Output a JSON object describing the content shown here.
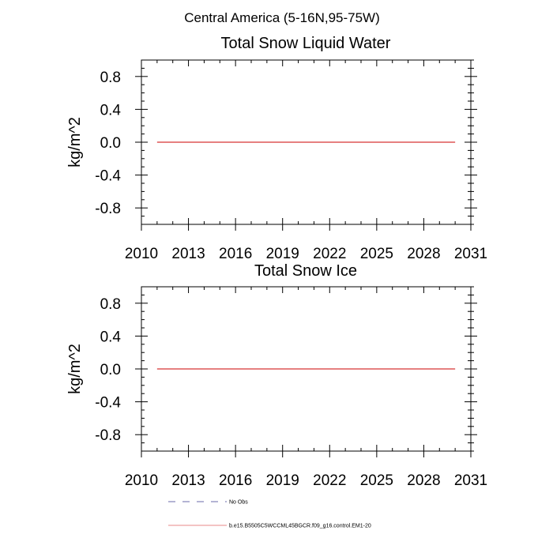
{
  "figure": {
    "suptitle": "Central America (5-16N,95-75W)"
  },
  "chart_data": [
    {
      "type": "line",
      "title": "Total Snow Liquid Water",
      "xlabel": "",
      "ylabel": "kg/m^2",
      "xlim": [
        2010,
        2031
      ],
      "ylim": [
        -1.0,
        1.0
      ],
      "xticks": [
        2010,
        2013,
        2016,
        2019,
        2022,
        2025,
        2028,
        2031
      ],
      "xtick_labels": [
        "2010",
        "2013",
        "2016",
        "2019",
        "2022",
        "2025",
        "2028",
        "2031"
      ],
      "yticks": [
        -0.8,
        -0.4,
        0.0,
        0.4,
        0.8
      ],
      "ytick_labels": [
        "-0.8",
        "-0.4",
        "0.0",
        "0.4",
        "0.8"
      ],
      "grid": false,
      "series": [
        {
          "name": "b.e15.B5505C5WCCML45BGCR.f09_g16.control.EM1-20",
          "color": "#cc0000",
          "x": [
            2011,
            2030
          ],
          "y": [
            0.0,
            0.0
          ]
        }
      ]
    },
    {
      "type": "line",
      "title": "Total Snow Ice",
      "xlabel": "",
      "ylabel": "kg/m^2",
      "xlim": [
        2010,
        2031
      ],
      "ylim": [
        -1.0,
        1.0
      ],
      "xticks": [
        2010,
        2013,
        2016,
        2019,
        2022,
        2025,
        2028,
        2031
      ],
      "xtick_labels": [
        "2010",
        "2013",
        "2016",
        "2019",
        "2022",
        "2025",
        "2028",
        "2031"
      ],
      "yticks": [
        -0.8,
        -0.4,
        0.0,
        0.4,
        0.8
      ],
      "ytick_labels": [
        "-0.8",
        "-0.4",
        "0.0",
        "0.4",
        "0.8"
      ],
      "grid": false,
      "series": [
        {
          "name": "b.e15.B5505C5WCCML45BGCR.f09_g16.control.EM1-20",
          "color": "#cc0000",
          "x": [
            2011,
            2030
          ],
          "y": [
            0.0,
            0.0
          ]
        }
      ]
    }
  ],
  "legend": {
    "placement": "bottom-center",
    "items": [
      {
        "label": "No Obs",
        "style": "dashed",
        "color": "#3a3a8c"
      },
      {
        "label": "b.e15.B5505C5WCCML45BGCR.f09_g16.control.EM1-20",
        "style": "solid",
        "color": "#e06060"
      }
    ]
  }
}
